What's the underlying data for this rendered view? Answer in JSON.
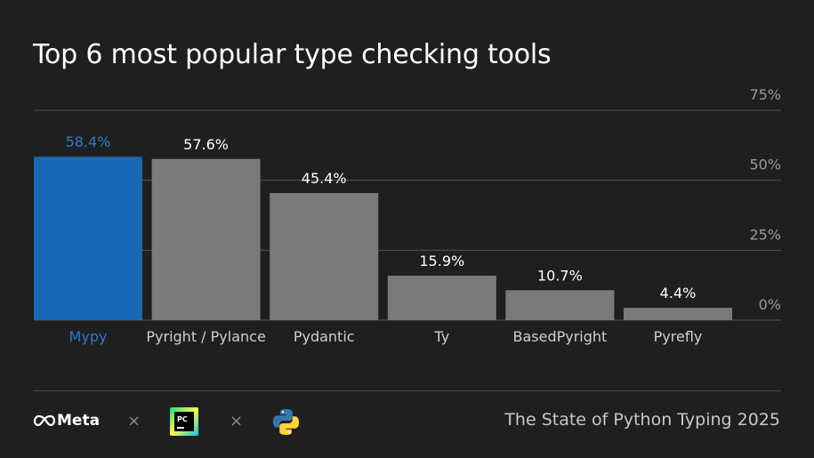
{
  "title": "Top 6 most popular type checking tools",
  "chart_data": {
    "type": "bar",
    "categories": [
      "Mypy",
      "Pyright / Pylance",
      "Pydantic",
      "Ty",
      "BasedPyright",
      "Pyrefly"
    ],
    "values": [
      58.4,
      57.6,
      45.4,
      15.9,
      10.7,
      4.4
    ],
    "value_labels": [
      "58.4%",
      "57.6%",
      "45.4%",
      "15.9%",
      "10.7%",
      "4.4%"
    ],
    "ylim": [
      0,
      75
    ],
    "yticks": [
      0,
      25,
      50,
      75
    ],
    "ytick_labels": [
      "0%",
      "25%",
      "50%",
      "75%"
    ],
    "y_axis_side": "right",
    "grid": true,
    "highlight_index": 0,
    "colors": {
      "highlight": "#1a68b3",
      "highlight_text": "#2c7ccc",
      "bar": "#7a7a7a",
      "text": "#ffffff",
      "category_text": "#d0d0d0",
      "tick_text": "#9a9a9a",
      "grid": "#555555"
    }
  },
  "footer": {
    "meta_logo_text": "Meta",
    "separator": "×",
    "logos": [
      "meta-logo",
      "pycharm-logo",
      "python-logo"
    ],
    "right_text": "The State of Python Typing 2025"
  }
}
